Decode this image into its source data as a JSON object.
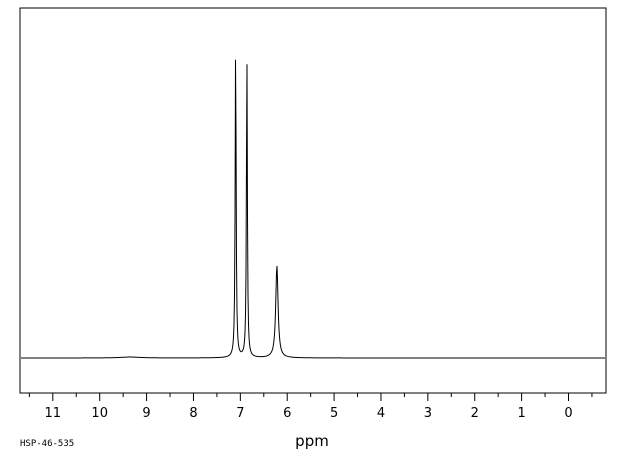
{
  "chart_data": {
    "type": "line",
    "xlabel": "ppm",
    "x_reversed": true,
    "xlim": [
      11.7,
      -0.8
    ],
    "ylim": [
      -0.1,
      1.0
    ],
    "ticks": [
      "11",
      "10",
      "9",
      "8",
      "7",
      "6",
      "5",
      "4",
      "3",
      "2",
      "1",
      "0"
    ],
    "tick_values": [
      11,
      10,
      9,
      8,
      7,
      6,
      5,
      4,
      3,
      2,
      1,
      0
    ],
    "grid": false,
    "legend": "none",
    "spectrum_code": "HSP-46-535",
    "peaks": [
      {
        "ppm": 7.1,
        "intensity": 1.0
      },
      {
        "ppm": 6.86,
        "intensity": 0.95
      },
      {
        "ppm": 6.22,
        "intensity": 0.29
      },
      {
        "ppm": 9.35,
        "intensity": 0.003
      }
    ],
    "colors": {
      "line": "#000000",
      "axis": "#000000"
    }
  }
}
